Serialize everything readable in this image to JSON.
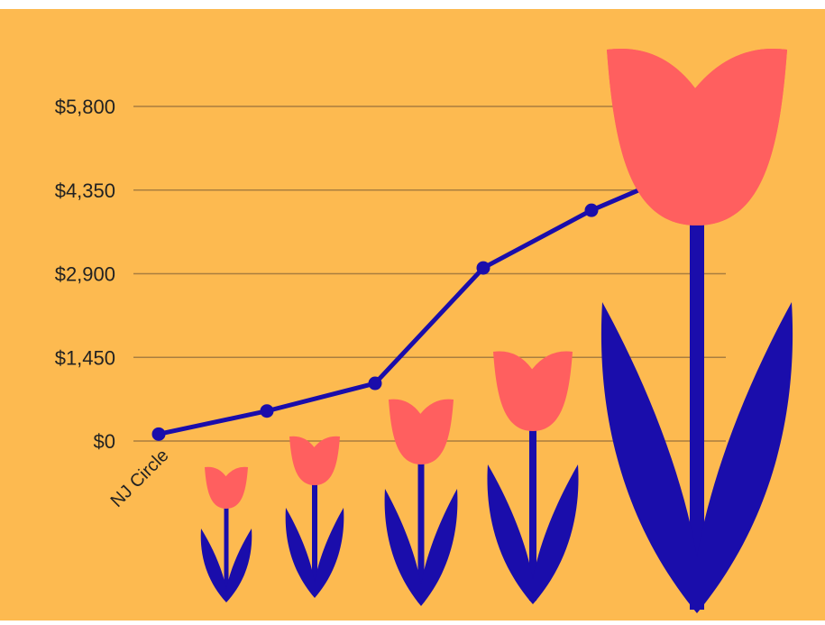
{
  "colors": {
    "background": "#FDBA50",
    "line": "#1A0DAB",
    "petal": "#FF5F5F",
    "leaf": "#1A0DAB",
    "grid": "#8C6A3A"
  },
  "chart_data": {
    "type": "line",
    "title": "",
    "xlabel": "",
    "ylabel": "",
    "categories": [
      "NJ Circle",
      "",
      "",
      "",
      "",
      ""
    ],
    "x_tick_labels": [
      "NJ Circle"
    ],
    "y_ticks": [
      0,
      1450,
      2900,
      4350,
      5800
    ],
    "y_tick_labels": [
      "$0",
      "$1,450",
      "$2,900",
      "$4,350",
      "$5,800"
    ],
    "ylim": [
      0,
      5800
    ],
    "grid": true,
    "legend": "none",
    "series": [
      {
        "values": [
          120,
          520,
          1000,
          3000,
          4000,
          4800
        ]
      }
    ],
    "decoration": "tulip-icons"
  }
}
